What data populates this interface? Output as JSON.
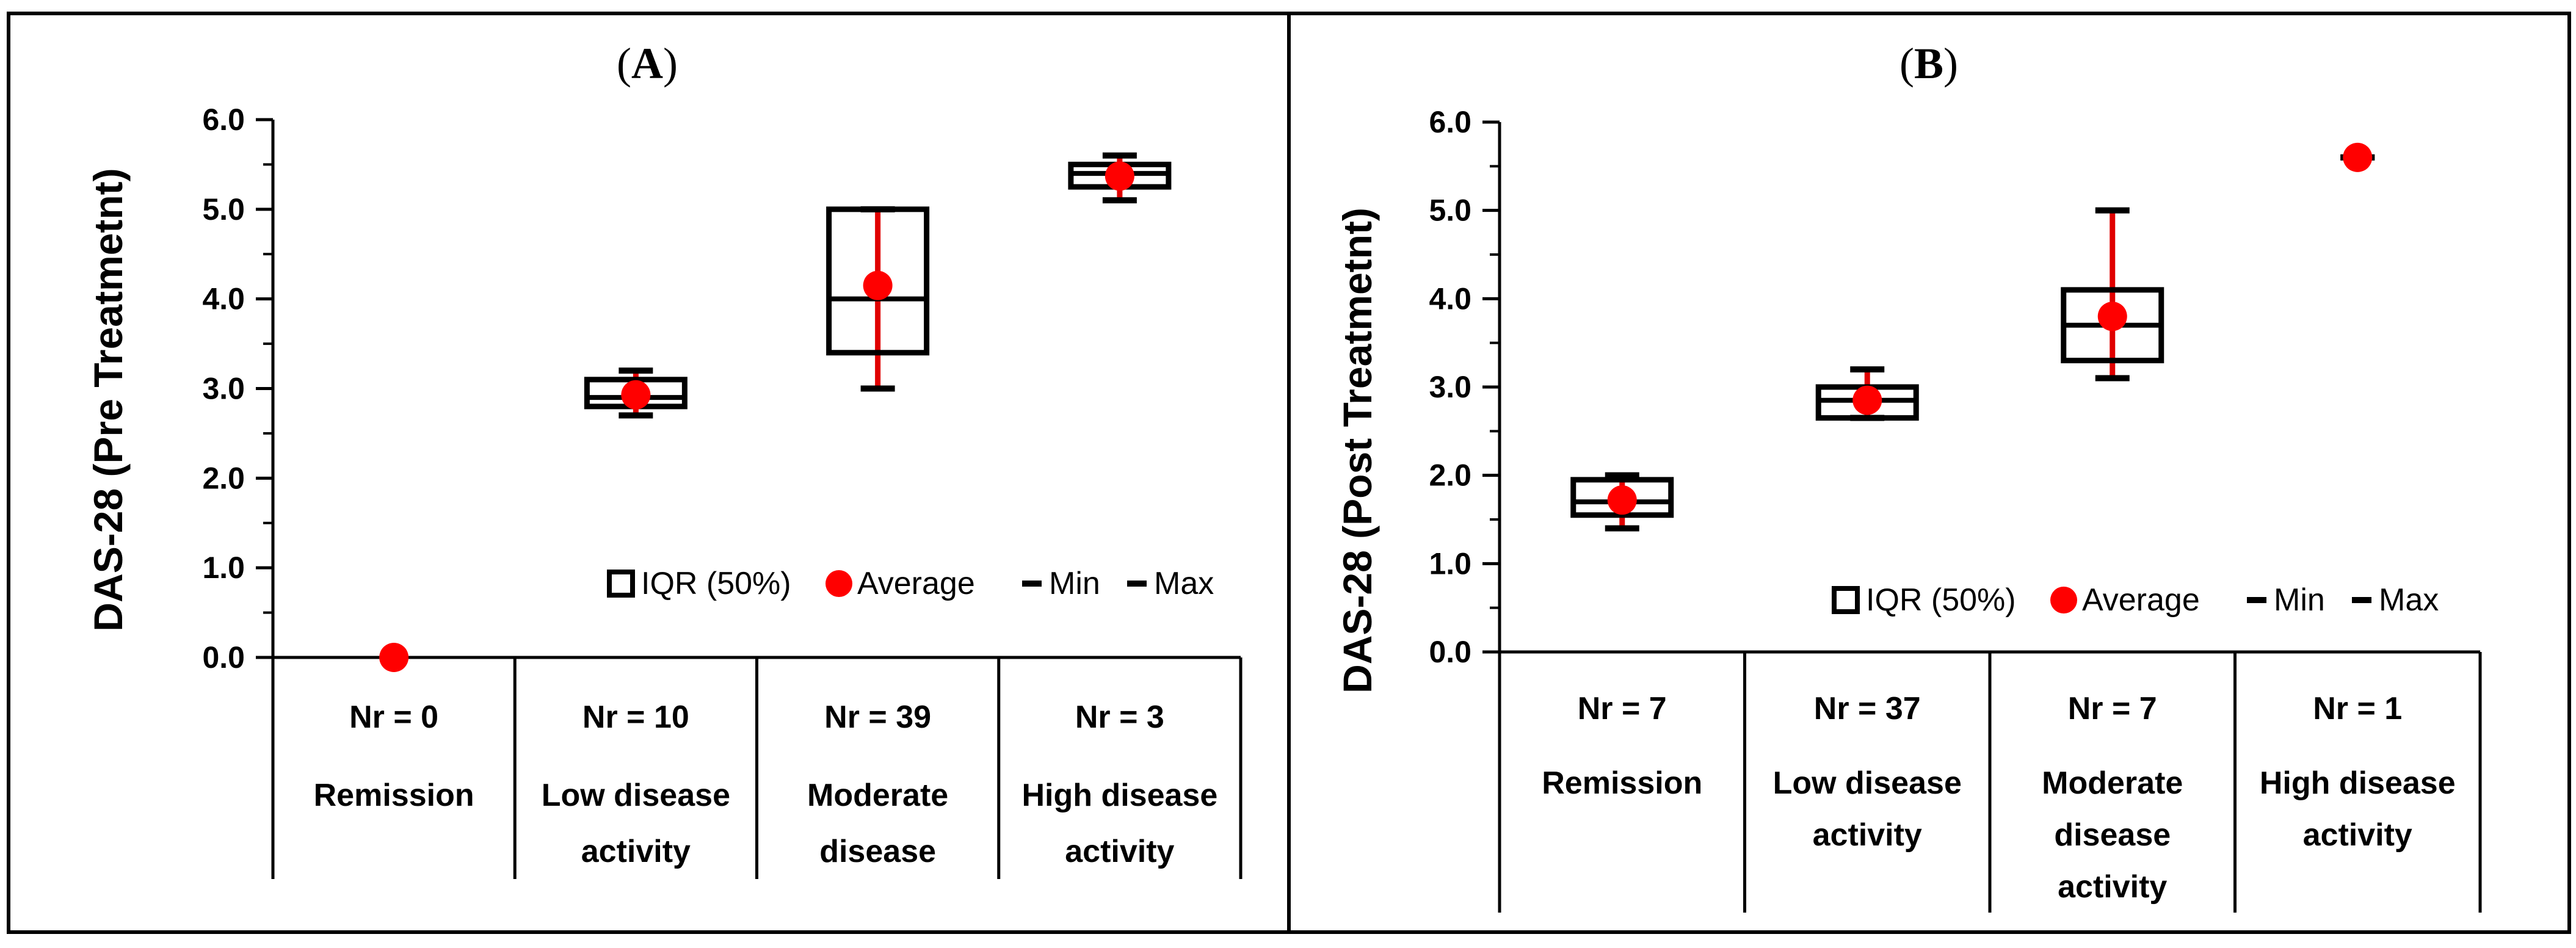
{
  "chart_data": [
    {
      "type": "box",
      "panel_label": "A",
      "title": "(A)",
      "ylabel": "DAS-28  (Pre Treatmetnt)",
      "ylim": [
        0,
        6
      ],
      "yticks": [
        "0.0",
        "1.0",
        "2.0",
        "3.0",
        "4.0",
        "5.0",
        "6.0"
      ],
      "categories": [
        {
          "count": "Nr = 0",
          "label_lines": [
            "Remission"
          ]
        },
        {
          "count": "Nr = 10",
          "label_lines": [
            "Low disease",
            "activity"
          ]
        },
        {
          "count": "Nr = 39",
          "label_lines": [
            "Moderate",
            "disease"
          ]
        },
        {
          "count": "Nr = 3",
          "label_lines": [
            "High disease",
            "activity"
          ]
        }
      ],
      "boxes": [
        {
          "q1": null,
          "median": null,
          "q3": null,
          "min": null,
          "max": null,
          "mean": 0.0
        },
        {
          "q1": 2.8,
          "median": 2.9,
          "q3": 3.1,
          "min": 2.7,
          "max": 3.2,
          "mean": 2.93
        },
        {
          "q1": 3.4,
          "median": 4.0,
          "q3": 5.0,
          "min": 3.0,
          "max": 5.0,
          "mean": 4.15
        },
        {
          "q1": 5.25,
          "median": 5.4,
          "q3": 5.5,
          "min": 5.1,
          "max": 5.6,
          "mean": 5.37
        }
      ],
      "legend": [
        "IQR (50%)",
        "Average",
        "Min",
        "Max"
      ],
      "legend_position": "bottom-right"
    },
    {
      "type": "box",
      "panel_label": "B",
      "title": "(B)",
      "ylabel": "DAS-28 (Post Treatmetnt)",
      "ylim": [
        0,
        6
      ],
      "yticks": [
        "0.0",
        "1.0",
        "2.0",
        "3.0",
        "4.0",
        "5.0",
        "6.0"
      ],
      "categories": [
        {
          "count": "Nr = 7",
          "label_lines": [
            "Remission"
          ]
        },
        {
          "count": "Nr = 37",
          "label_lines": [
            "Low disease",
            "activity"
          ]
        },
        {
          "count": "Nr = 7",
          "label_lines": [
            "Moderate",
            "disease",
            "activity"
          ]
        },
        {
          "count": "Nr = 1",
          "label_lines": [
            "High disease",
            "activity"
          ]
        }
      ],
      "boxes": [
        {
          "q1": 1.55,
          "median": 1.7,
          "q3": 1.95,
          "min": 1.4,
          "max": 2.0,
          "mean": 1.72
        },
        {
          "q1": 2.65,
          "median": 2.85,
          "q3": 3.0,
          "min": 2.65,
          "max": 3.2,
          "mean": 2.85
        },
        {
          "q1": 3.3,
          "median": 3.7,
          "q3": 4.1,
          "min": 3.1,
          "max": 5.0,
          "mean": 3.8
        },
        {
          "q1": null,
          "median": null,
          "q3": null,
          "min": 5.6,
          "max": 5.6,
          "mean": 5.6
        }
      ],
      "legend": [
        "IQR (50%)",
        "Average",
        "Min",
        "Max"
      ],
      "legend_position": "bottom-right"
    }
  ],
  "colors": {
    "mean": "#ff0000",
    "whisker": "#e00000",
    "box": "#000000",
    "axis": "#000000"
  }
}
